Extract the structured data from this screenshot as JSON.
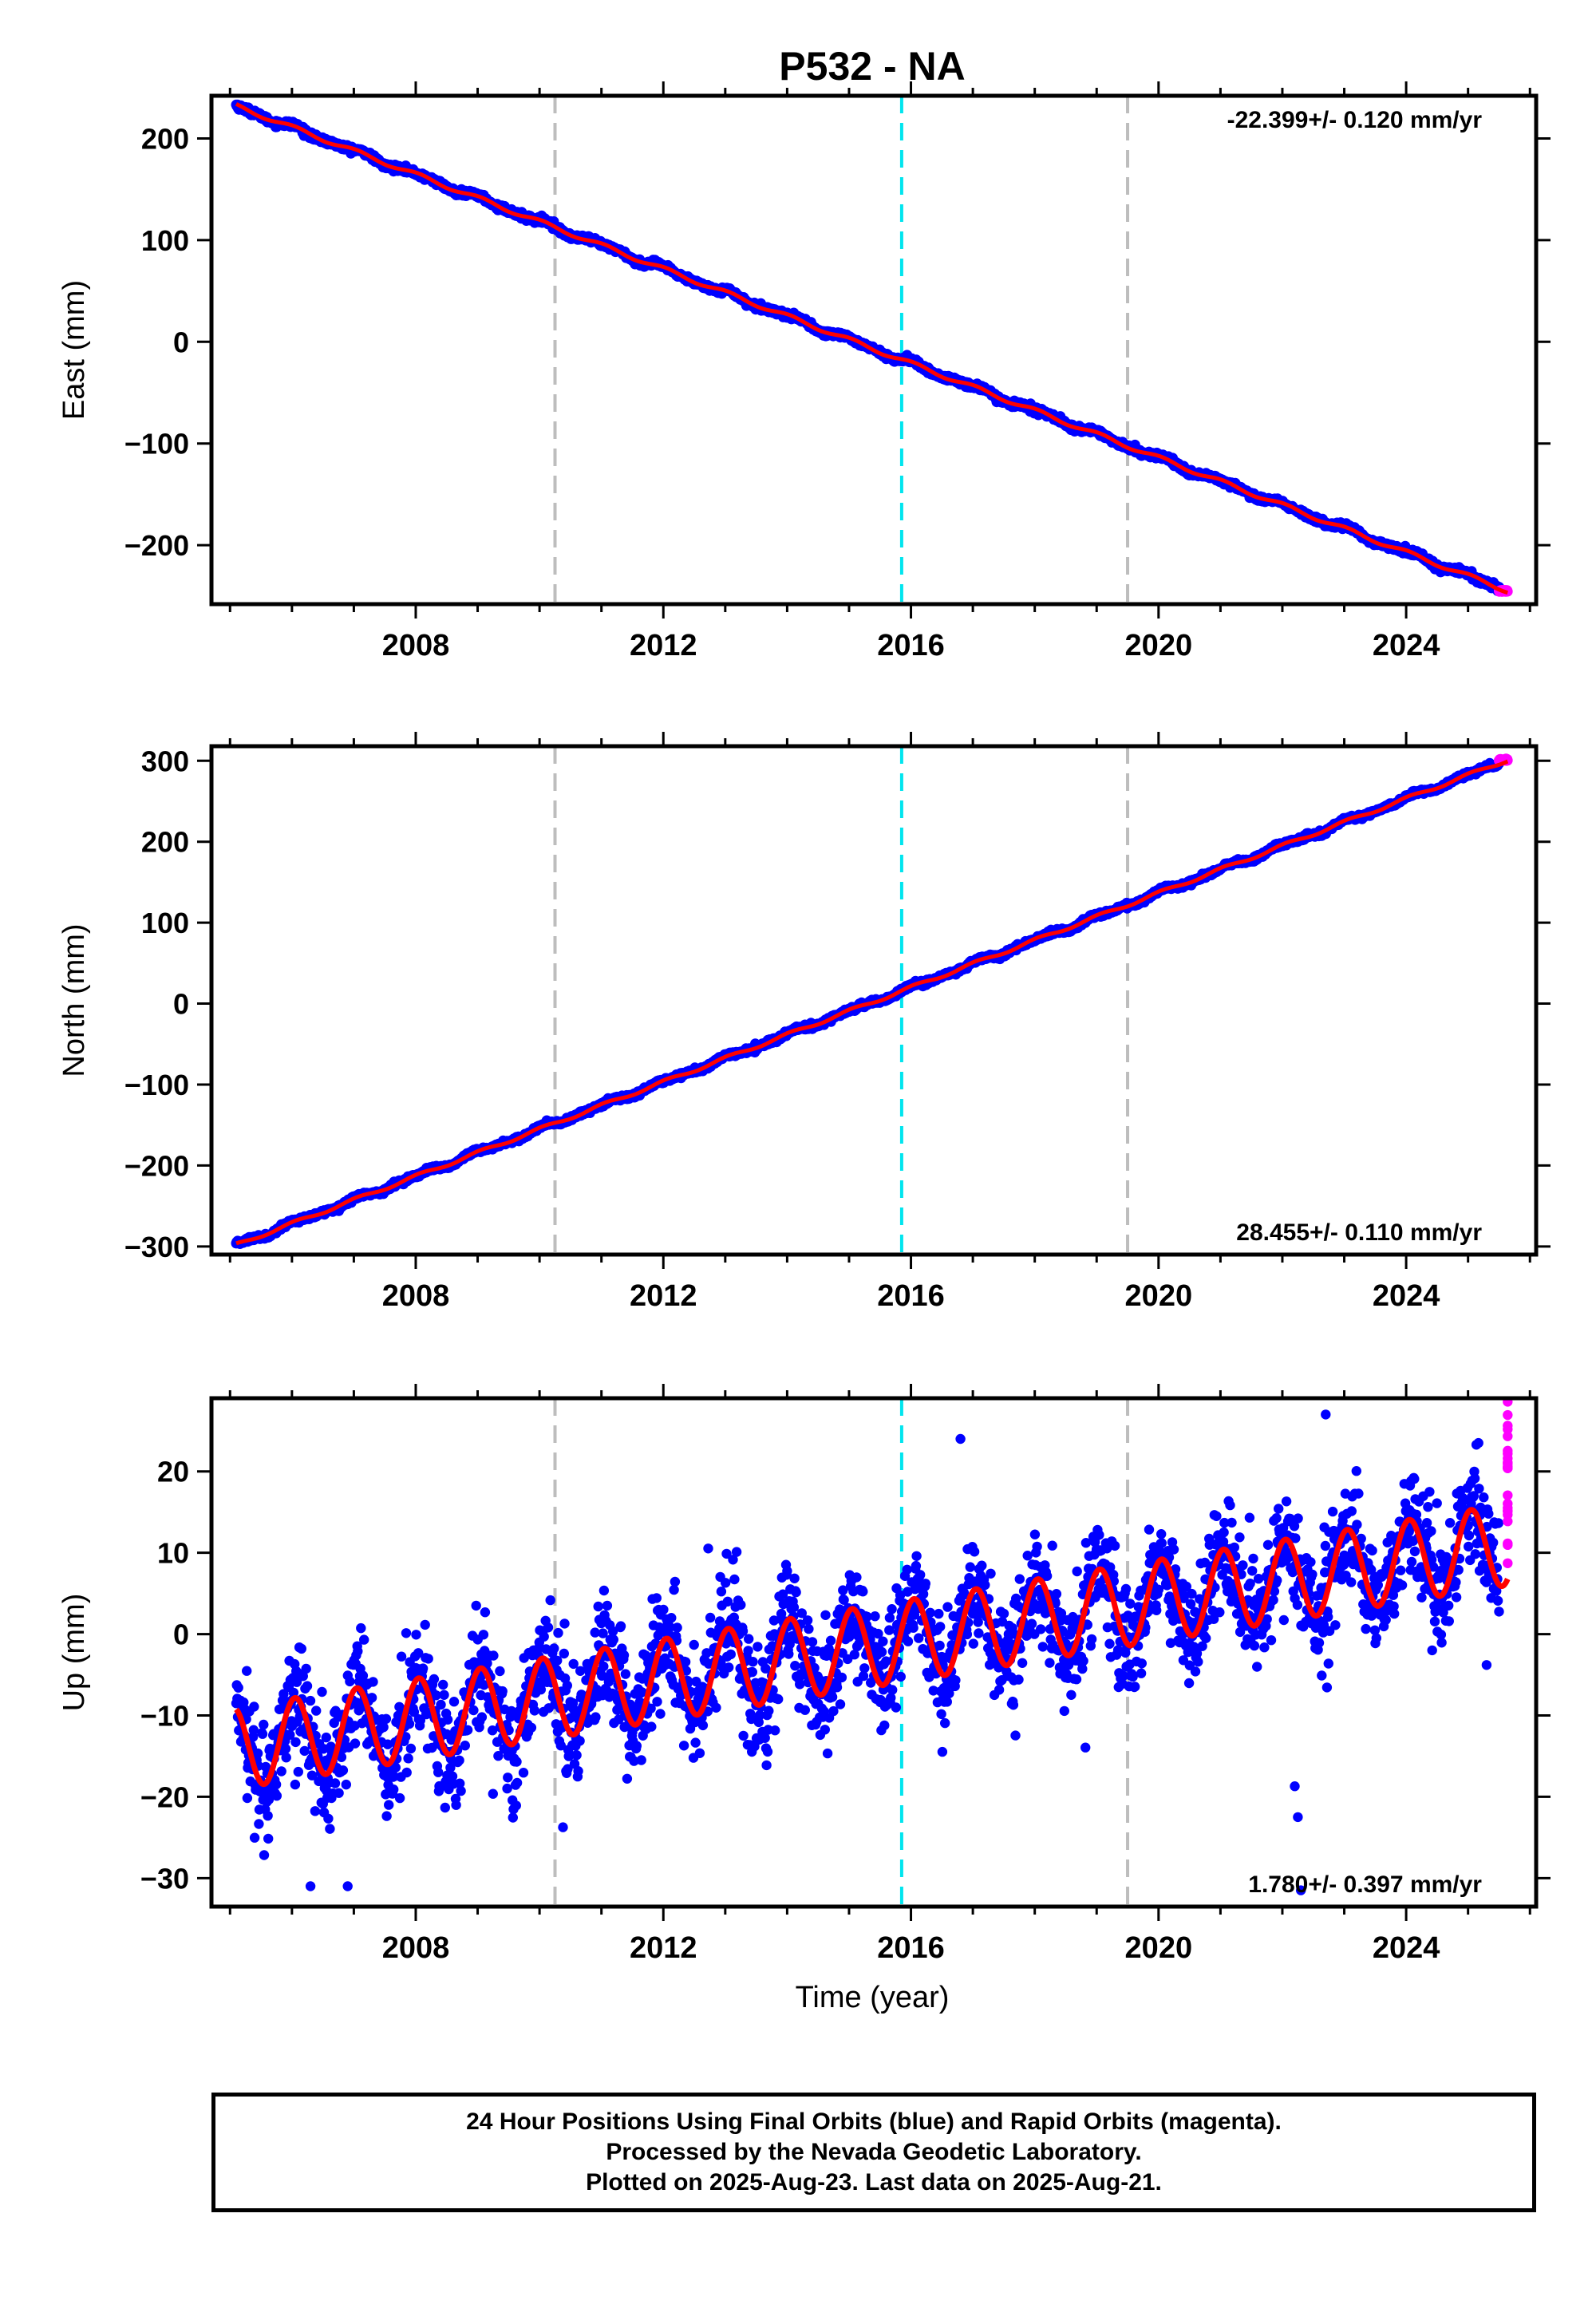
{
  "colors": {
    "final_orbits": "#0000ff",
    "rapid_orbits": "#ff00ff",
    "model_fit": "#ff0000",
    "equipment_change_line": "#bdbdbd",
    "earthquake_line": "#00e5ee"
  },
  "chart_data": {
    "title": "P532 - NA",
    "xlabel": "Time (year)",
    "x_range": [
      2004.7,
      2026.1
    ],
    "x_ticks": [
      2008,
      2012,
      2016,
      2020,
      2024
    ],
    "vertical_markers": [
      {
        "x": 2010.25,
        "color": "#bdbdbd"
      },
      {
        "x": 2015.85,
        "color": "#00e5ee"
      },
      {
        "x": 2019.5,
        "color": "#bdbdbd"
      }
    ],
    "time_span": {
      "start": 2005.1,
      "final_end": 2025.5,
      "rapid_end": 2025.64
    },
    "panels": [
      {
        "type": "scatter",
        "ylabel": "East (mm)",
        "ylim": [
          -258,
          242
        ],
        "y_ticks": [
          200,
          100,
          0,
          -100,
          -200
        ],
        "y_tick_labels": [
          "200",
          "100",
          "0",
          "−100",
          "−200"
        ],
        "rate_label": "-22.399+/- 0.120 mm/yr",
        "rate_position": "top-right",
        "rate_mm_per_yr": -22.399,
        "value_at_start": 232,
        "value_at_end": -245,
        "seasonal_amplitude": 2,
        "scatter_sd": 1.4,
        "outliers": []
      },
      {
        "type": "scatter",
        "ylabel": "North (mm)",
        "ylim": [
          -310,
          318
        ],
        "y_ticks": [
          300,
          200,
          100,
          0,
          -100,
          -200,
          -300
        ],
        "y_tick_labels": [
          "300",
          "200",
          "100",
          "0",
          "−100",
          "−200",
          "−300"
        ],
        "rate_label": "28.455+/- 0.110 mm/yr",
        "rate_position": "bottom-right",
        "rate_mm_per_yr": 28.455,
        "value_at_start": -298,
        "value_at_end": 301,
        "seasonal_amplitude": 2,
        "scatter_sd": 1.4,
        "outliers": []
      },
      {
        "type": "scatter",
        "ylabel": "Up (mm)",
        "ylim": [
          -33.5,
          29
        ],
        "y_ticks": [
          20,
          10,
          0,
          -10,
          -20,
          -30
        ],
        "y_tick_labels": [
          "20",
          "10",
          "0",
          "−10",
          "−20",
          "−30"
        ],
        "rate_label": "1.780+/- 0.397 mm/yr",
        "rate_position": "bottom-right",
        "rate_mm_per_yr": 1.78,
        "value_at_start": -14,
        "value_at_end": 11,
        "seasonal_amplitude": 5,
        "scatter_sd": 3.3,
        "outliers": [
          {
            "x": 2006.3,
            "y": -31.0
          },
          {
            "x": 2006.9,
            "y": -31.0
          },
          {
            "x": 2022.2,
            "y": -18.7
          },
          {
            "x": 2022.25,
            "y": -22.5
          },
          {
            "x": 2022.3,
            "y": -31.5
          },
          {
            "x": 2016.8,
            "y": 24.0
          },
          {
            "x": 2022.7,
            "y": 27.0
          },
          {
            "x": 2025.3,
            "y": -3.8
          }
        ]
      }
    ]
  },
  "caption": {
    "line1": "24 Hour Positions Using Final Orbits (blue) and Rapid Orbits (magenta).",
    "line2": "Processed by the Nevada Geodetic Laboratory.",
    "line3": "Plotted on 2025-Aug-23. Last data on 2025-Aug-21."
  }
}
